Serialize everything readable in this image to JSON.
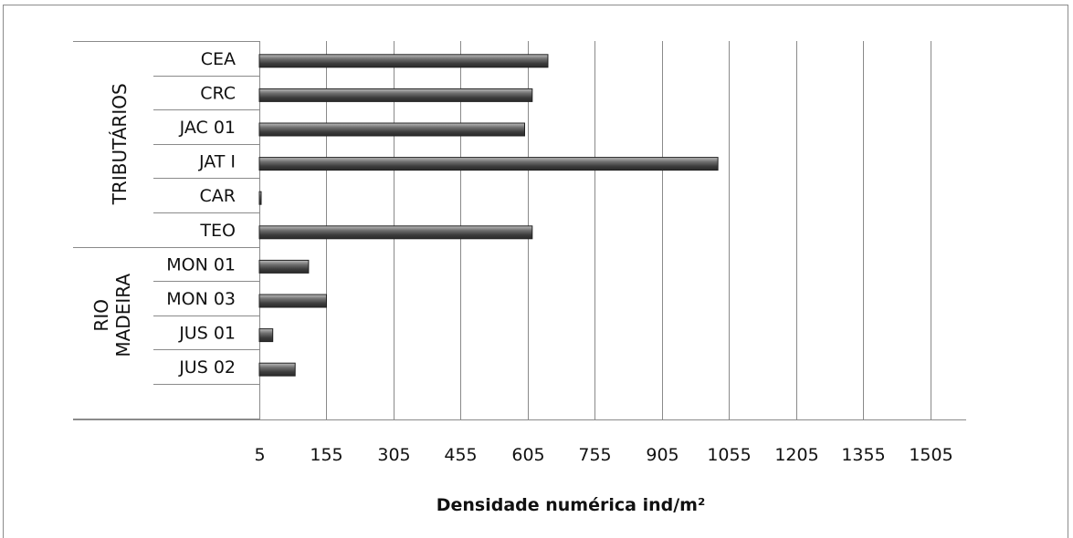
{
  "chart_data": {
    "type": "bar",
    "orientation": "horizontal",
    "xlabel": "Densidade numérica  ind/m²",
    "x_ticks": [
      "5",
      "155",
      "305",
      "455",
      "605",
      "755",
      "905",
      "1055",
      "1205",
      "1355",
      "1505"
    ],
    "xlim": [
      5,
      1585
    ],
    "grid": "vertical",
    "legend": "none",
    "bar_color": "#5a5a5a",
    "groups": [
      {
        "name": "TRIBUTÁRIOS",
        "categories": [
          "CEA",
          "CRC",
          "JAC 01",
          "JAT I",
          "CAR",
          "TEO"
        ],
        "values": [
          650,
          615,
          598,
          1030,
          8,
          615
        ]
      },
      {
        "name": "RIO MADEIRA",
        "name_lines": [
          "RIO",
          "MADEIRA"
        ],
        "categories": [
          "MON 01",
          "MON 03",
          "JUS 01",
          "JUS 02"
        ],
        "values": [
          115,
          155,
          35,
          85
        ]
      }
    ]
  }
}
